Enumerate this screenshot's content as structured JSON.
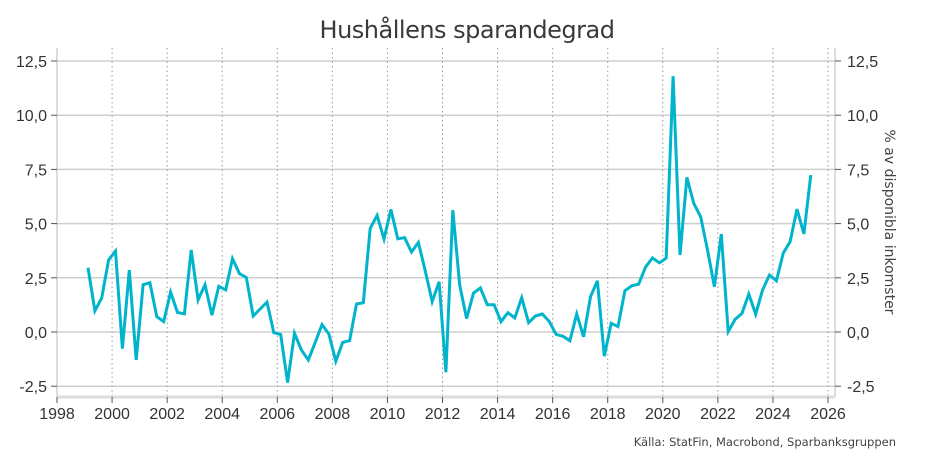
{
  "chart_data": {
    "type": "line",
    "title": "Hushållens sparandegrad",
    "xlabel": "",
    "ylabel": "",
    "ylabel_right": "% av disponibla inkomster",
    "source": "Källa: StatFin, Macrobond, Sparbanksgruppen",
    "xlim": [
      1998,
      2026
    ],
    "ylim": [
      -3.0,
      13.0
    ],
    "x_ticks": [
      1998,
      2000,
      2002,
      2004,
      2006,
      2008,
      2010,
      2012,
      2014,
      2016,
      2018,
      2020,
      2022,
      2024,
      2026
    ],
    "x_tick_labels": [
      "1998",
      "2000",
      "2002",
      "2004",
      "2006",
      "2008",
      "2010",
      "2012",
      "2014",
      "2016",
      "2018",
      "2020",
      "2022",
      "2024",
      "2026"
    ],
    "y_ticks": [
      -2.5,
      0.0,
      2.5,
      5.0,
      7.5,
      10.0,
      12.5
    ],
    "y_tick_labels": [
      "-2,5",
      "0,0",
      "2,5",
      "5,0",
      "7,5",
      "10,0",
      "12,5"
    ],
    "grid": {
      "horizontal": true,
      "vertical_dotted": true
    },
    "legend": null,
    "line_color": "#00b4cc",
    "series": [
      {
        "name": "Hushållens sparandegrad",
        "start": "1999Q1",
        "frequency": "quarterly",
        "x": [
          1999.125,
          1999.375,
          1999.625,
          1999.875,
          2000.125,
          2000.375,
          2000.625,
          2000.875,
          2001.125,
          2001.375,
          2001.625,
          2001.875,
          2002.125,
          2002.375,
          2002.625,
          2002.875,
          2003.125,
          2003.375,
          2003.625,
          2003.875,
          2004.125,
          2004.375,
          2004.625,
          2004.875,
          2005.125,
          2005.375,
          2005.625,
          2005.875,
          2006.125,
          2006.375,
          2006.625,
          2006.875,
          2007.125,
          2007.375,
          2007.625,
          2007.875,
          2008.125,
          2008.375,
          2008.625,
          2008.875,
          2009.125,
          2009.375,
          2009.625,
          2009.875,
          2010.125,
          2010.375,
          2010.625,
          2010.875,
          2011.125,
          2011.375,
          2011.625,
          2011.875,
          2012.125,
          2012.375,
          2012.625,
          2012.875,
          2013.125,
          2013.375,
          2013.625,
          2013.875,
          2014.125,
          2014.375,
          2014.625,
          2014.875,
          2015.125,
          2015.375,
          2015.625,
          2015.875,
          2016.125,
          2016.375,
          2016.625,
          2016.875,
          2017.125,
          2017.375,
          2017.625,
          2017.875,
          2018.125,
          2018.375,
          2018.625,
          2018.875,
          2019.125,
          2019.375,
          2019.625,
          2019.875,
          2020.125,
          2020.375,
          2020.625,
          2020.875,
          2021.125,
          2021.375,
          2021.625,
          2021.875,
          2022.125,
          2022.375,
          2022.625,
          2022.875,
          2023.125,
          2023.375,
          2023.625,
          2023.875,
          2024.125,
          2024.375,
          2024.625,
          2024.875,
          2025.125,
          2025.375
        ],
        "values": [
          2.96,
          0.98,
          1.57,
          3.32,
          3.73,
          -0.77,
          2.86,
          -1.29,
          2.18,
          2.27,
          0.71,
          0.48,
          1.84,
          0.9,
          0.84,
          3.78,
          1.48,
          2.18,
          0.78,
          2.11,
          1.94,
          3.38,
          2.7,
          2.52,
          0.74,
          1.06,
          1.38,
          -0.03,
          -0.12,
          -2.33,
          -0.06,
          -0.83,
          -1.29,
          -0.48,
          0.34,
          -0.09,
          -1.35,
          -0.48,
          -0.4,
          1.29,
          1.35,
          4.78,
          5.38,
          4.29,
          5.65,
          4.3,
          4.35,
          3.69,
          4.13,
          2.81,
          1.4,
          2.32,
          -1.86,
          5.62,
          2.17,
          0.62,
          1.8,
          2.03,
          1.26,
          1.26,
          0.48,
          0.89,
          0.65,
          1.58,
          0.43,
          0.74,
          0.83,
          0.49,
          -0.11,
          -0.2,
          -0.4,
          0.83,
          -0.22,
          1.63,
          2.36,
          -1.11,
          0.4,
          0.25,
          1.9,
          2.13,
          2.21,
          3.0,
          3.42,
          3.19,
          3.41,
          11.8,
          3.55,
          7.13,
          5.93,
          5.31,
          3.78,
          2.09,
          4.52,
          0.02,
          0.58,
          0.86,
          1.75,
          0.82,
          1.94,
          2.63,
          2.36,
          3.65,
          4.16,
          5.67,
          4.52,
          7.24
        ]
      }
    ]
  }
}
